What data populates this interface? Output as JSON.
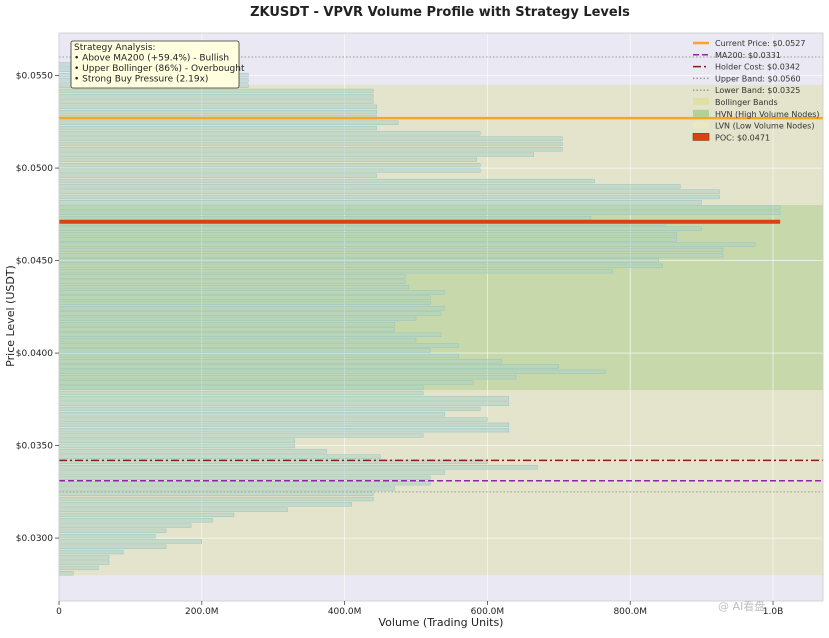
{
  "chart_data": {
    "type": "bar",
    "orientation": "horizontal",
    "title": "ZKUSDT - VPVR Volume Profile with Strategy Levels",
    "xlabel": "Volume (Trading Units)",
    "ylabel": "Price Level (USDT)",
    "xlim": [
      0,
      1070000000
    ],
    "ylim": [
      0.0266,
      0.0573
    ],
    "x_ticks": [
      {
        "value": 0,
        "label": "0"
      },
      {
        "value": 200000000,
        "label": "200.0M"
      },
      {
        "value": 400000000,
        "label": "400.0M"
      },
      {
        "value": 600000000,
        "label": "600.0M"
      },
      {
        "value": 800000000,
        "label": "800.0M"
      },
      {
        "value": 1000000000,
        "label": "1.0B"
      }
    ],
    "y_ticks": [
      {
        "value": 0.03,
        "label": "$0.0300"
      },
      {
        "value": 0.035,
        "label": "$0.0350"
      },
      {
        "value": 0.04,
        "label": "$0.0400"
      },
      {
        "value": 0.045,
        "label": "$0.0450"
      },
      {
        "value": 0.05,
        "label": "$0.0500"
      },
      {
        "value": 0.055,
        "label": "$0.0550"
      }
    ],
    "price_range": [
      0.0281,
      0.0556
    ],
    "volumes_m": [
      20,
      55,
      70,
      70,
      90,
      150,
      200,
      135,
      150,
      185,
      215,
      245,
      320,
      410,
      440,
      440,
      470,
      520,
      520,
      540,
      670,
      600,
      450,
      375,
      330,
      330,
      510,
      630,
      630,
      600,
      540,
      590,
      630,
      630,
      510,
      510,
      580,
      640,
      765,
      700,
      620,
      560,
      520,
      560,
      500,
      535,
      470,
      470,
      500,
      535,
      540,
      520,
      520,
      540,
      490,
      485,
      485,
      775,
      845,
      840,
      930,
      930,
      975,
      865,
      865,
      900,
      850,
      745,
      1010,
      1010,
      900,
      925,
      925,
      870,
      750,
      445,
      590,
      590,
      585,
      665,
      705,
      705,
      705,
      590,
      445,
      475,
      445,
      445,
      445,
      440,
      440,
      440,
      265,
      265,
      265,
      190,
      150
    ],
    "vpvr_color": "#a9d1c2",
    "series": [
      {
        "name": "Current Price: $0.0527",
        "type": "hline",
        "value": 0.0527,
        "color": "#f5a623",
        "style": "solid"
      },
      {
        "name": "MA200: $0.0331",
        "type": "hline",
        "value": 0.0331,
        "color": "#8e24aa",
        "style": "dashed"
      },
      {
        "name": "Holder Cost: $0.0342",
        "type": "hline",
        "value": 0.0342,
        "color": "#8b1a1a",
        "style": "dashdot"
      },
      {
        "name": "Upper Band: $0.0560",
        "type": "hline",
        "value": 0.056,
        "color": "#999999",
        "style": "dotted"
      },
      {
        "name": "Lower Band: $0.0325",
        "type": "hline",
        "value": 0.0325,
        "color": "#999999",
        "style": "dotted"
      },
      {
        "name": "Bollinger Bands",
        "type": "band",
        "range": [
          0.028,
          0.0545
        ],
        "color": "#dede9c"
      },
      {
        "name": "HVN (High Volume Nodes)",
        "type": "band",
        "range": [
          0.038,
          0.048
        ],
        "color": "#a5cc85"
      },
      {
        "name": "LVN (Low Volume Nodes)",
        "type": "band",
        "range": [
          null,
          null
        ],
        "color": "#e9e9c0"
      },
      {
        "name": "POC: $0.0471",
        "type": "hline",
        "value": 0.0471,
        "color": "#d84315",
        "style": "solid"
      }
    ],
    "grid": true,
    "legend_position": "top-right",
    "annotation": {
      "lines": [
        "Strategy Analysis:",
        "• Above MA200 (+59.4%) - Bullish",
        "• Upper Bollinger (86%) - Overbought",
        "• Strong Buy Pressure (2.19x)"
      ]
    }
  },
  "watermark_text": "@ AI看盘"
}
